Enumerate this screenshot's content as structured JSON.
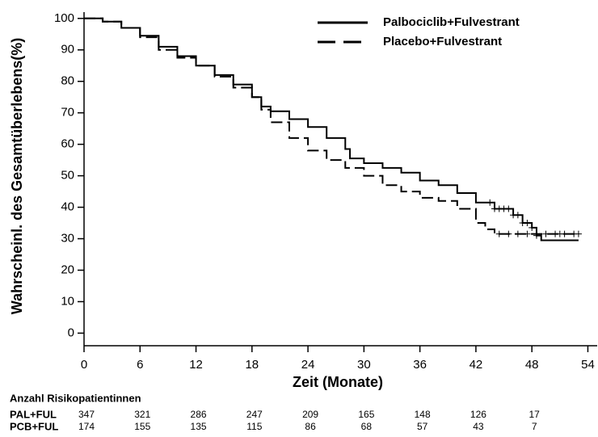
{
  "chart_data": {
    "type": "line",
    "step": true,
    "xlabel": "Zeit (Monate)",
    "ylabel": "Wahrscheinl. des Gesamtüberlebens(%)",
    "xlim": [
      0,
      55
    ],
    "ylim": [
      -4,
      102
    ],
    "xticks": [
      0,
      6,
      12,
      18,
      24,
      30,
      36,
      42,
      48,
      54
    ],
    "yticks": [
      0,
      10,
      20,
      30,
      40,
      50,
      60,
      70,
      80,
      90,
      100
    ],
    "legend_position": "upper right",
    "series": [
      {
        "name": "Palbociclib+Fulvestrant",
        "color": "#000000",
        "dash": "solid",
        "x": [
          0,
          2,
          4,
          6,
          8,
          10,
          12,
          14,
          16,
          18,
          19,
          20,
          22,
          24,
          26,
          28,
          28.5,
          30,
          32,
          34,
          36,
          38,
          40,
          42,
          44,
          46,
          47,
          48,
          48.5,
          49,
          53
        ],
        "values": [
          100,
          99,
          97,
          94.5,
          91,
          88,
          85,
          82,
          79,
          75,
          72,
          70.5,
          68,
          65.5,
          62,
          58.5,
          55.5,
          54,
          52.5,
          51,
          48.5,
          47,
          44.5,
          41.5,
          39.5,
          37.5,
          35,
          33.5,
          31,
          29.5,
          29.5
        ],
        "censored_x": [
          43.5,
          44,
          44.5,
          45,
          45.5,
          46,
          46.5,
          47,
          47.5,
          48,
          48.5
        ]
      },
      {
        "name": "Placebo+Fulvestrant",
        "color": "#000000",
        "dash": "dashed",
        "x": [
          0,
          2,
          4,
          6,
          8,
          10,
          12,
          14,
          16,
          18,
          19,
          20,
          22,
          24,
          26,
          28,
          30,
          32,
          34,
          36,
          38,
          40,
          42,
          43,
          44,
          53
        ],
        "values": [
          100,
          99,
          97,
          94,
          90,
          87.5,
          85,
          81.5,
          78,
          75,
          71,
          67,
          62,
          58,
          55,
          52.5,
          50,
          47,
          45,
          43,
          42,
          39.5,
          35,
          33,
          31.5,
          31.5
        ],
        "censored_x": [
          44.5,
          45.5,
          46.5,
          47.5,
          48.5,
          49.5,
          50.5,
          51,
          51.5,
          52.5,
          53
        ]
      }
    ],
    "risk_table": {
      "title": "Anzahl Risikopatientinnen",
      "times": [
        0,
        6,
        12,
        18,
        24,
        30,
        36,
        42,
        48
      ],
      "rows": [
        {
          "label": "PAL+FUL",
          "values": [
            347,
            321,
            286,
            247,
            209,
            165,
            148,
            126,
            17
          ]
        },
        {
          "label": "PCB+FUL",
          "values": [
            174,
            155,
            135,
            115,
            86,
            68,
            57,
            43,
            7
          ]
        }
      ]
    }
  }
}
